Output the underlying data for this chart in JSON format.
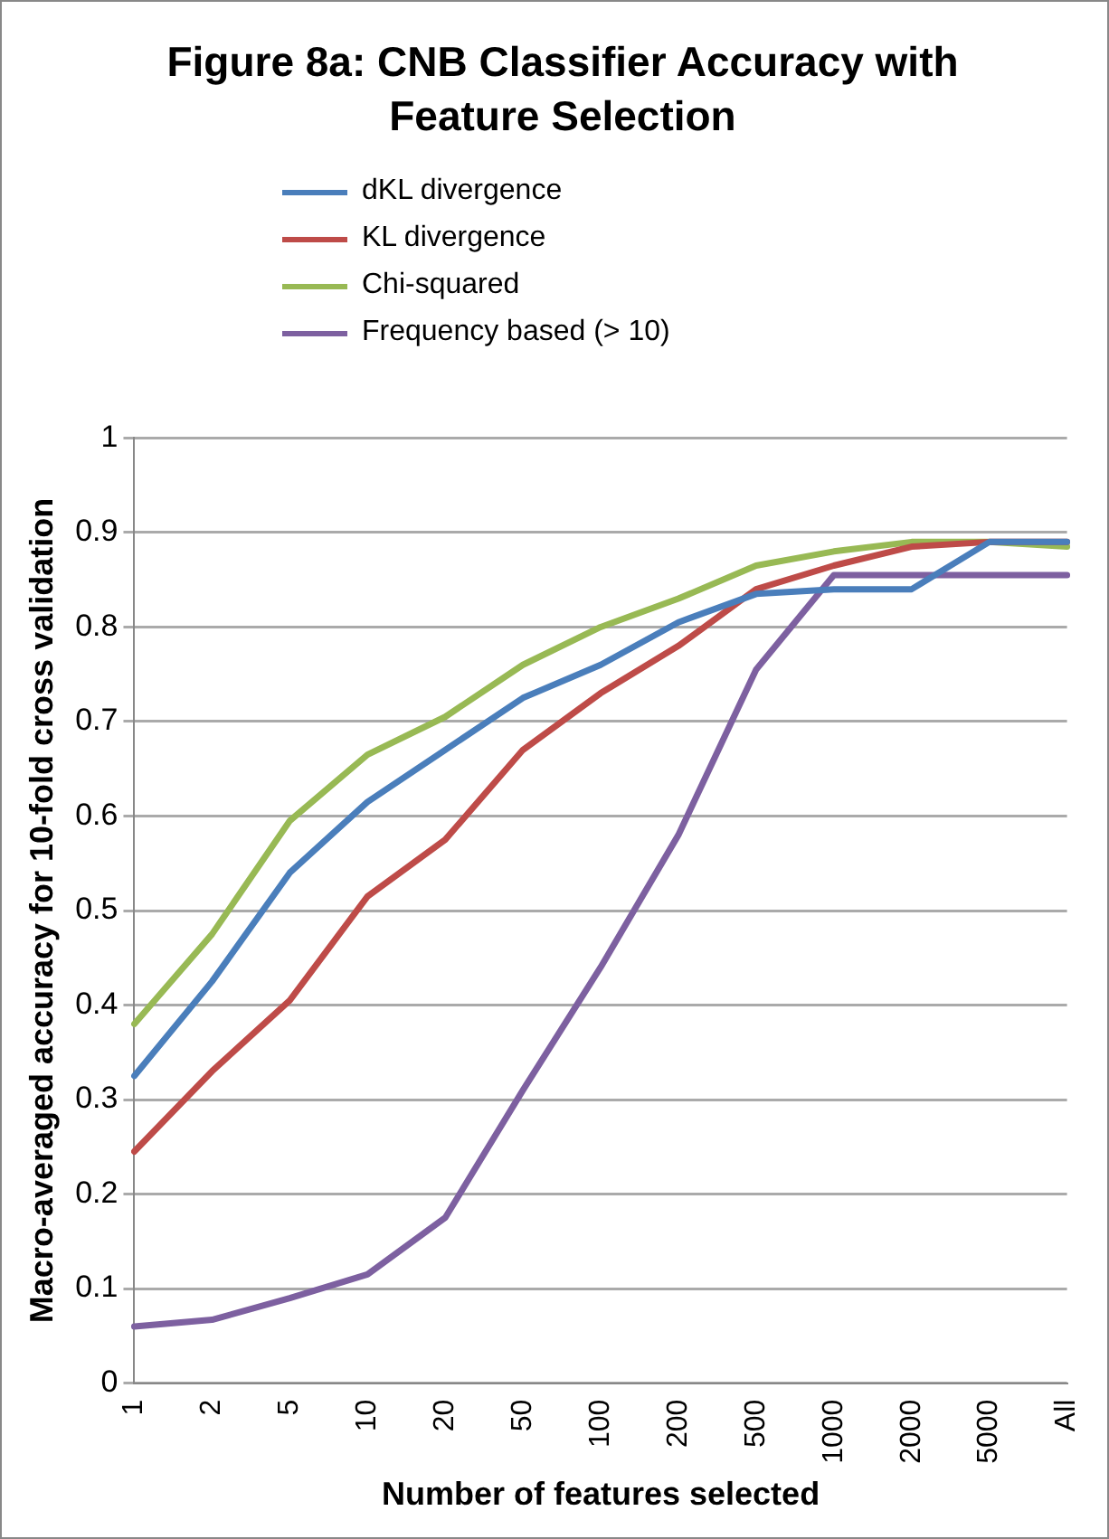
{
  "chart_data": {
    "type": "line",
    "title": "Figure 8a: CNB Classifier Accuracy with Feature Selection",
    "xlabel": "Number of features selected",
    "ylabel": "Macro-averaged accuracy for 10-fold cross validation",
    "categories": [
      "1",
      "2",
      "5",
      "10",
      "20",
      "50",
      "100",
      "200",
      "500",
      "1000",
      "2000",
      "5000",
      "All"
    ],
    "series": [
      {
        "name": "dKL divergence",
        "color": "#4a7ebb",
        "values": [
          0.325,
          0.425,
          0.54,
          0.615,
          0.67,
          0.725,
          0.76,
          0.805,
          0.835,
          0.84,
          0.84,
          0.89,
          0.89
        ]
      },
      {
        "name": "KL divergence",
        "color": "#be4b48",
        "values": [
          0.245,
          0.33,
          0.405,
          0.515,
          0.575,
          0.67,
          0.73,
          0.78,
          0.84,
          0.865,
          0.885,
          0.89,
          0.89
        ]
      },
      {
        "name": "Chi-squared",
        "color": "#98b954",
        "values": [
          0.38,
          0.475,
          0.595,
          0.665,
          0.705,
          0.76,
          0.8,
          0.83,
          0.865,
          0.88,
          0.89,
          0.89,
          0.885
        ]
      },
      {
        "name": "Frequency based (> 10)",
        "color": "#7d60a0",
        "values": [
          0.06,
          0.067,
          0.09,
          0.115,
          0.175,
          0.31,
          0.44,
          0.58,
          0.755,
          0.855,
          0.855,
          0.855,
          0.855
        ]
      }
    ],
    "ylim": [
      0,
      1
    ],
    "yticks": [
      0,
      0.1,
      0.2,
      0.3,
      0.4,
      0.5,
      0.6,
      0.7,
      0.8,
      0.9,
      1
    ],
    "grid": "y",
    "legend": "top",
    "marker": "none",
    "line_style": "solid"
  }
}
